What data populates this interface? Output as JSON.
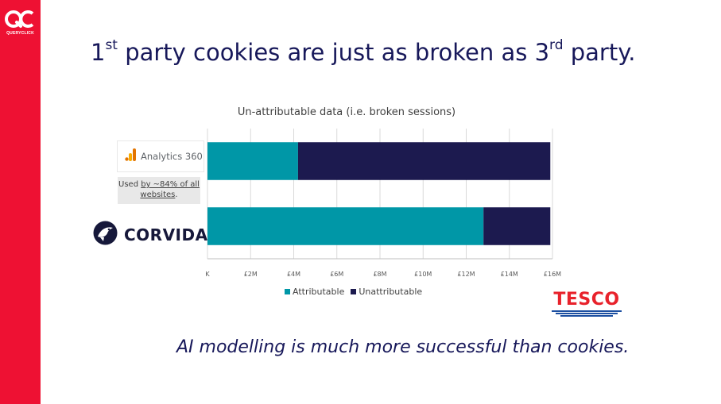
{
  "brand": {
    "name": "QUERYCLICK",
    "colors": {
      "sidebar": "#ee1133"
    }
  },
  "title": {
    "part1": "1",
    "sup1": "st",
    "part2": " party cookies are just as broken as 3",
    "sup2": "rd",
    "part3": " party."
  },
  "logos": {
    "analytics": {
      "label": "Analytics 360",
      "icon": "analytics-bars-icon"
    },
    "analytics_note": {
      "pre": "Used ",
      "link": "by ~84% of all websites",
      "post": "."
    },
    "corvidae": {
      "label": "CORVIDAE",
      "icon": "corvidae-bird-icon"
    },
    "tesco": {
      "label": "TESCO"
    }
  },
  "chart_data": {
    "type": "bar",
    "orientation": "horizontal",
    "stacked": true,
    "title": "Un-attributable data (i.e. broken sessions)",
    "categories": [
      "Analytics 360",
      "CORVIDAE"
    ],
    "series": [
      {
        "name": "Attributable",
        "color": "#0097a7",
        "values": [
          4.2,
          12.8
        ]
      },
      {
        "name": "Unattributable",
        "color": "#1c1a4f",
        "values": [
          11.7,
          3.1
        ]
      }
    ],
    "xlim": [
      0,
      16
    ],
    "xticks": [
      0,
      2,
      4,
      6,
      8,
      10,
      12,
      14,
      16
    ],
    "xtick_labels": [
      "K",
      "£2M",
      "£4M",
      "£6M",
      "£8M",
      "£10M",
      "£12M",
      "£14M",
      "£16M"
    ],
    "grid": true,
    "legend": "bottom"
  },
  "footer": {
    "text": "AI modelling is much more successful than cookies."
  }
}
